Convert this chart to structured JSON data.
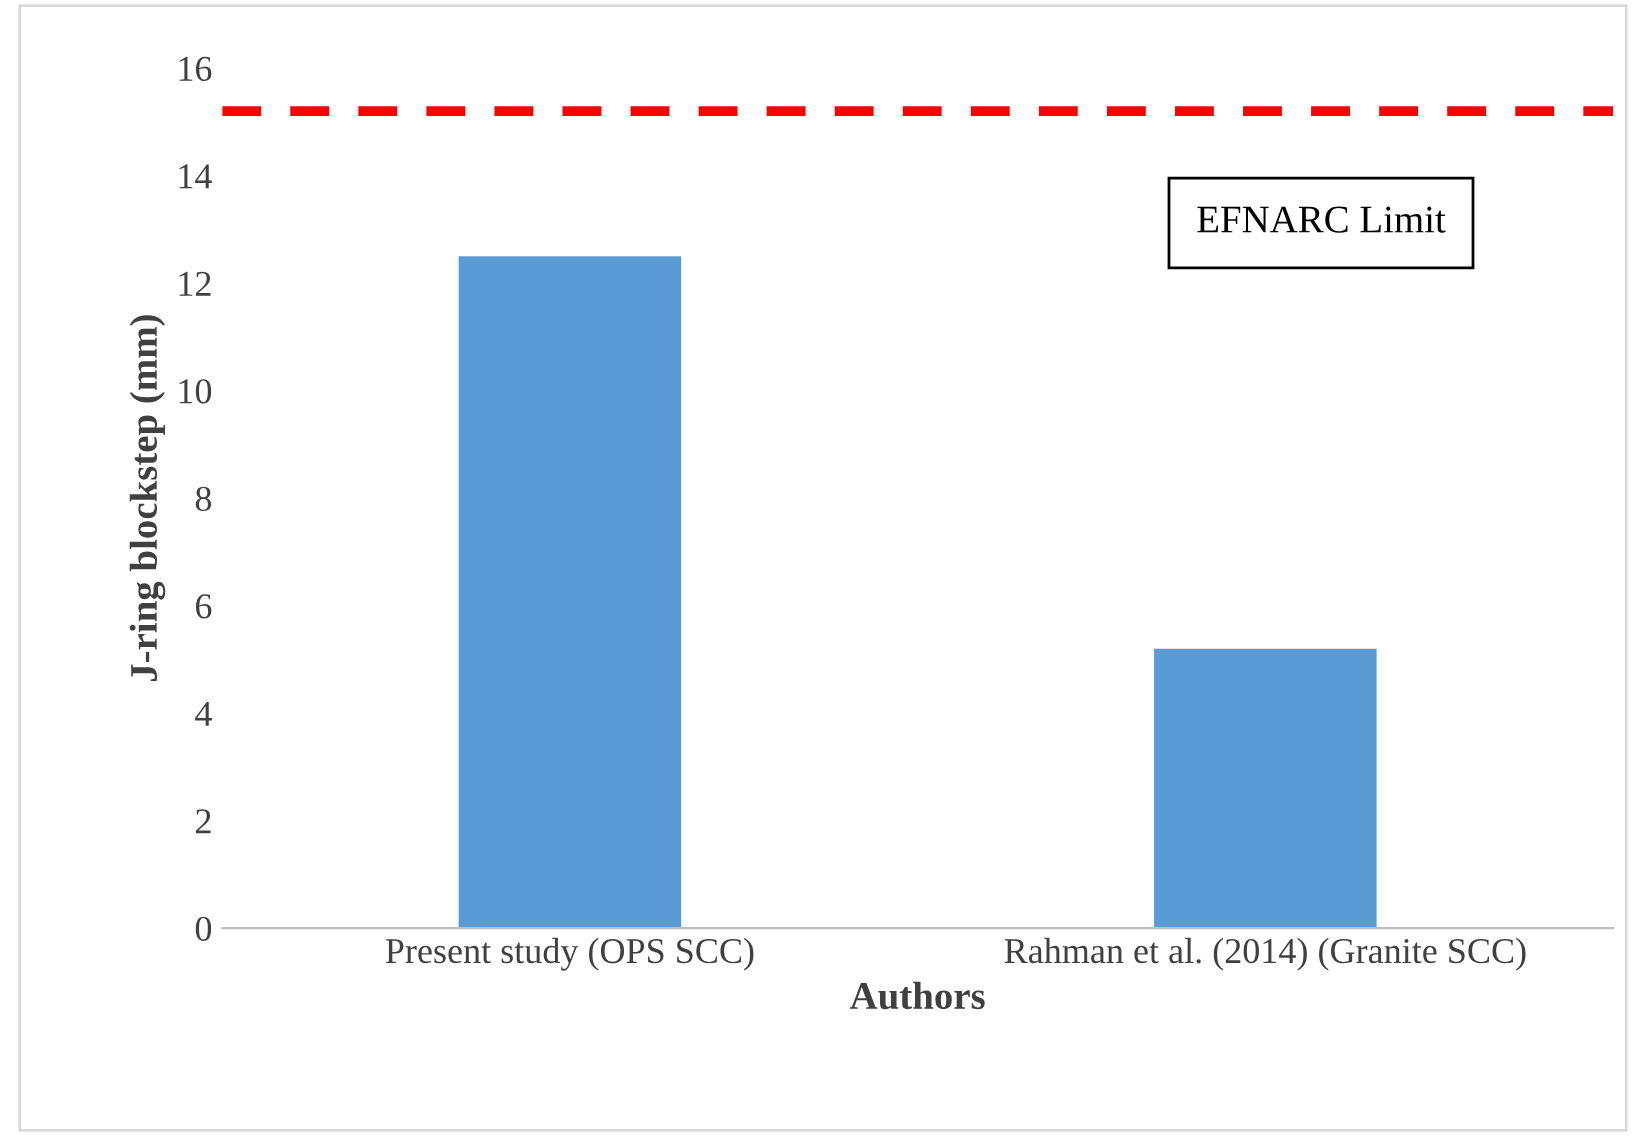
{
  "chart_data": {
    "type": "bar",
    "xlabel": "Authors",
    "ylabel": "J-ring blockstep (mm)",
    "categories": [
      "Present study (OPS SCC)",
      "Rahman et al. (2014) (Granite SCC)"
    ],
    "values": [
      12.5,
      5.2
    ],
    "color": "#5b9bd5",
    "ylim": [
      0,
      16
    ],
    "yticks": [
      0,
      2,
      4,
      6,
      8,
      10,
      12,
      14,
      16
    ],
    "grid": false,
    "ref_lines": [
      {
        "axis": "y",
        "value": 15.2,
        "label": "EFNARC Limit",
        "color": "#ff0000",
        "line_style": "dashed"
      }
    ]
  }
}
